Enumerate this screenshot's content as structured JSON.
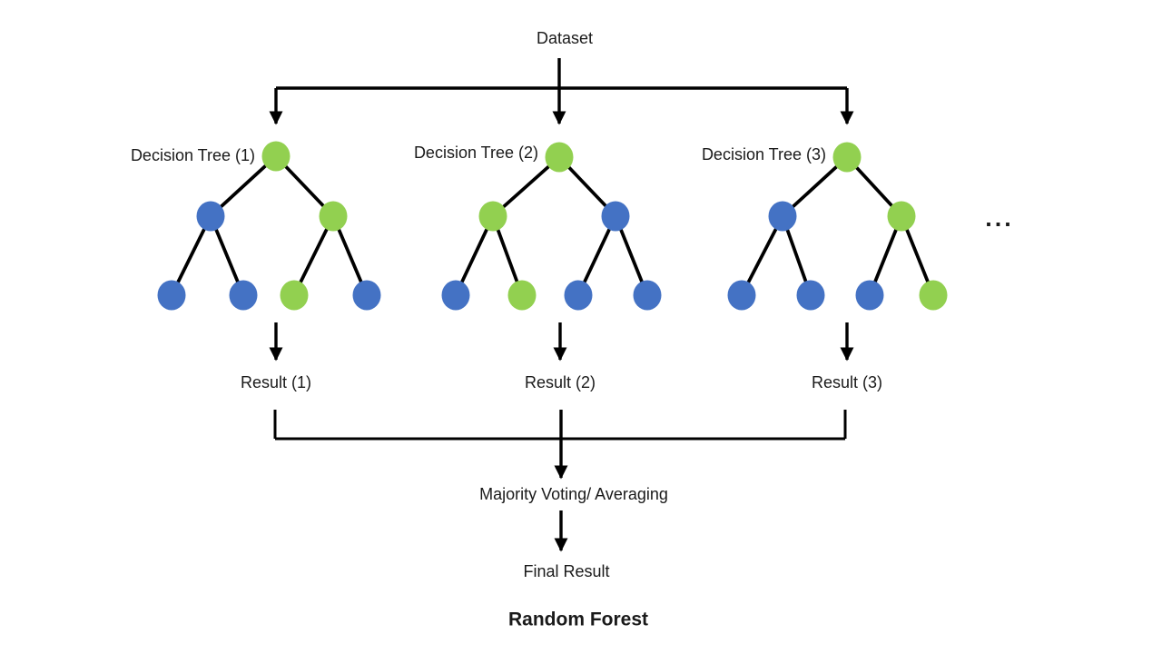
{
  "diagram": {
    "dataset_label": "Dataset",
    "ellipsis": "...",
    "majority_label": "Majority Voting/ Averaging",
    "final_result_label": "Final Result",
    "title": "Random Forest",
    "node_colors": {
      "green": "#92D050",
      "blue": "#4472C4"
    },
    "line_color": "#000000",
    "trees": [
      {
        "label": "Decision Tree (1)",
        "result_label": "Result (1)",
        "node_fill_pattern": [
          "green",
          "blue",
          "green",
          "blue",
          "blue",
          "green",
          "blue"
        ]
      },
      {
        "label": "Decision Tree (2)",
        "result_label": "Result (2)",
        "node_fill_pattern": [
          "green",
          "green",
          "blue",
          "blue",
          "green",
          "blue",
          "blue"
        ]
      },
      {
        "label": "Decision Tree (3)",
        "result_label": "Result (3)",
        "node_fill_pattern": [
          "green",
          "blue",
          "green",
          "blue",
          "blue",
          "blue",
          "green"
        ]
      }
    ]
  }
}
